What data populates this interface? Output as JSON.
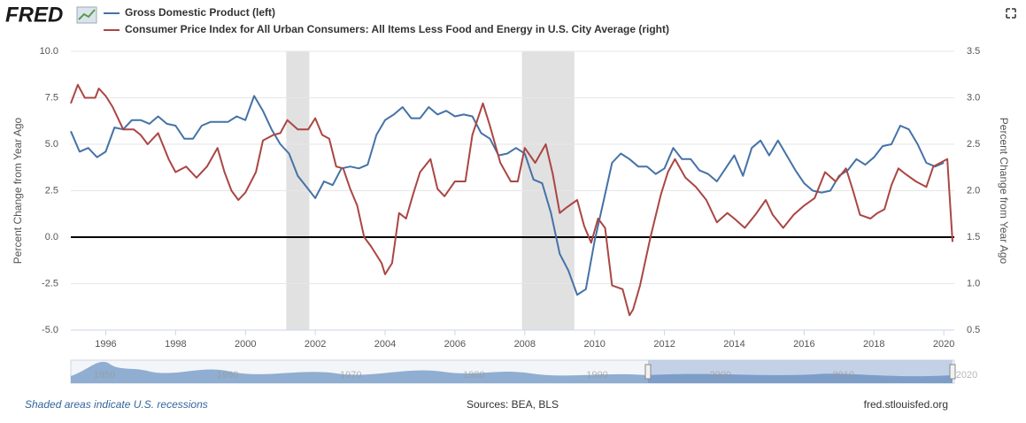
{
  "chart_data": {
    "type": "line",
    "logo": "FRED",
    "xlim": [
      1995,
      2020.3
    ],
    "xticks": [
      1996,
      1998,
      2000,
      2002,
      2004,
      2006,
      2008,
      2010,
      2012,
      2014,
      2016,
      2018,
      2020
    ],
    "ylim": [
      -5,
      10
    ],
    "yticks": [
      {
        "value": 10,
        "label": "10.0"
      },
      {
        "value": 7.5,
        "label": "7.5"
      },
      {
        "value": 5,
        "label": "5.0"
      },
      {
        "value": 2.5,
        "label": "2.5"
      },
      {
        "value": 0,
        "label": "0.0"
      },
      {
        "value": -2.5,
        "label": "-2.5"
      },
      {
        "value": -5,
        "label": "-5.0"
      }
    ],
    "y2lim": [
      0.5,
      3.5
    ],
    "y2ticks": [
      {
        "value": 3.5,
        "label": "3.5"
      },
      {
        "value": 3,
        "label": "3.0"
      },
      {
        "value": 2.5,
        "label": "2.5"
      },
      {
        "value": 2,
        "label": "2.0"
      },
      {
        "value": 1.5,
        "label": "1.5"
      },
      {
        "value": 1,
        "label": "1.0"
      },
      {
        "value": 0.5,
        "label": "0.5"
      }
    ],
    "ylabel": "Percent Change from Year Ago",
    "y2label": "Percent Change from Year Ago",
    "grid": true,
    "baseline": 0,
    "recession_color": "#e1e1e1",
    "recessions": [
      [
        2001.17,
        2001.83
      ],
      [
        2007.92,
        2009.42
      ]
    ],
    "series": [
      {
        "name": "Gross Domestic Product (left)",
        "color": "#4572a7",
        "axis": "y",
        "x": [
          1995,
          1995.25,
          1995.5,
          1995.75,
          1996,
          1996.25,
          1996.5,
          1996.75,
          1997,
          1997.25,
          1997.5,
          1997.75,
          1998,
          1998.25,
          1998.5,
          1998.75,
          1999,
          1999.25,
          1999.5,
          1999.75,
          2000,
          2000.25,
          2000.5,
          2000.75,
          2001,
          2001.25,
          2001.5,
          2001.75,
          2002,
          2002.25,
          2002.5,
          2002.75,
          2003,
          2003.25,
          2003.5,
          2003.75,
          2004,
          2004.25,
          2004.5,
          2004.75,
          2005,
          2005.25,
          2005.5,
          2005.75,
          2006,
          2006.25,
          2006.5,
          2006.75,
          2007,
          2007.25,
          2007.5,
          2007.75,
          2008,
          2008.25,
          2008.5,
          2008.75,
          2009,
          2009.25,
          2009.5,
          2009.75,
          2010,
          2010.25,
          2010.5,
          2010.75,
          2011,
          2011.25,
          2011.5,
          2011.75,
          2012,
          2012.25,
          2012.5,
          2012.75,
          2013,
          2013.25,
          2013.5,
          2013.75,
          2014,
          2014.25,
          2014.5,
          2014.75,
          2015,
          2015.25,
          2015.5,
          2015.75,
          2016,
          2016.25,
          2016.5,
          2016.75,
          2017,
          2017.25,
          2017.5,
          2017.75,
          2018,
          2018.25,
          2018.5,
          2018.75,
          2019,
          2019.25,
          2019.5,
          2019.75,
          2020
        ],
        "values": [
          5.7,
          4.6,
          4.8,
          4.3,
          4.6,
          5.9,
          5.8,
          6.3,
          6.3,
          6.1,
          6.5,
          6.1,
          6.0,
          5.3,
          5.3,
          6.0,
          6.2,
          6.2,
          6.2,
          6.5,
          6.3,
          7.6,
          6.8,
          5.8,
          5.0,
          4.5,
          3.3,
          2.7,
          2.1,
          3.0,
          2.8,
          3.7,
          3.8,
          3.7,
          3.9,
          5.5,
          6.3,
          6.6,
          7.0,
          6.4,
          6.4,
          7.0,
          6.6,
          6.8,
          6.5,
          6.6,
          6.5,
          5.6,
          5.3,
          4.4,
          4.5,
          4.8,
          4.5,
          3.1,
          2.9,
          1.3,
          -0.9,
          -1.8,
          -3.1,
          -2.8,
          -0.2,
          1.9,
          4.0,
          4.5,
          4.2,
          3.8,
          3.8,
          3.4,
          3.7,
          4.8,
          4.2,
          4.2,
          3.6,
          3.4,
          3.0,
          3.7,
          4.4,
          3.3,
          4.8,
          5.2,
          4.4,
          5.2,
          4.4,
          3.6,
          2.9,
          2.5,
          2.4,
          2.5,
          3.3,
          3.6,
          4.2,
          3.9,
          4.3,
          4.9,
          5.0,
          6.0,
          5.8,
          5.0,
          4.0,
          3.8,
          4.0
        ]
      },
      {
        "name": "Consumer Price Index for All Urban Consumers: All Items Less Food and Energy in U.S. City Average (right)",
        "color": "#aa4643",
        "axis": "y2",
        "x": [
          1995,
          1995.2,
          1995.4,
          1995.7,
          1995.8,
          1996,
          1996.2,
          1996.5,
          1996.8,
          1997,
          1997.2,
          1997.5,
          1997.8,
          1998,
          1998.3,
          1998.6,
          1998.9,
          1999.2,
          1999.4,
          1999.6,
          1999.8,
          2000,
          2000.3,
          2000.5,
          2000.8,
          2001,
          2001.2,
          2001.5,
          2001.8,
          2002,
          2002.2,
          2002.4,
          2002.6,
          2002.8,
          2003,
          2003.2,
          2003.4,
          2003.6,
          2003.9,
          2004,
          2004.2,
          2004.4,
          2004.6,
          2004.8,
          2005,
          2005.3,
          2005.5,
          2005.7,
          2006,
          2006.3,
          2006.5,
          2006.8,
          2007,
          2007.3,
          2007.6,
          2007.8,
          2008,
          2008.3,
          2008.6,
          2008.8,
          2009,
          2009.2,
          2009.5,
          2009.7,
          2009.9,
          2010.1,
          2010.3,
          2010.5,
          2010.8,
          2011,
          2011.1,
          2011.3,
          2011.6,
          2011.9,
          2012.1,
          2012.3,
          2012.6,
          2012.9,
          2013.2,
          2013.5,
          2013.8,
          2014,
          2014.3,
          2014.6,
          2014.9,
          2015.1,
          2015.4,
          2015.7,
          2016,
          2016.3,
          2016.6,
          2016.9,
          2017.2,
          2017.4,
          2017.6,
          2017.9,
          2018.1,
          2018.3,
          2018.5,
          2018.7,
          2018.9,
          2019.2,
          2019.5,
          2019.7,
          2019.9,
          2020.1,
          2020.25
        ],
        "values": [
          2.94,
          3.14,
          3.0,
          3.0,
          3.1,
          3.02,
          2.9,
          2.66,
          2.66,
          2.6,
          2.5,
          2.62,
          2.34,
          2.2,
          2.26,
          2.14,
          2.26,
          2.46,
          2.2,
          2.0,
          1.9,
          1.98,
          2.2,
          2.54,
          2.6,
          2.62,
          2.76,
          2.66,
          2.66,
          2.78,
          2.6,
          2.56,
          2.26,
          2.24,
          2.02,
          1.84,
          1.5,
          1.4,
          1.22,
          1.1,
          1.22,
          1.76,
          1.7,
          1.96,
          2.2,
          2.34,
          2.02,
          1.94,
          2.1,
          2.1,
          2.6,
          2.94,
          2.7,
          2.3,
          2.1,
          2.1,
          2.46,
          2.3,
          2.5,
          2.18,
          1.76,
          1.82,
          1.9,
          1.62,
          1.44,
          1.7,
          1.6,
          0.98,
          0.94,
          0.66,
          0.72,
          0.98,
          1.5,
          1.96,
          2.2,
          2.34,
          2.14,
          2.04,
          1.9,
          1.66,
          1.76,
          1.7,
          1.6,
          1.74,
          1.9,
          1.74,
          1.6,
          1.74,
          1.84,
          1.92,
          2.2,
          2.1,
          2.24,
          2.0,
          1.74,
          1.7,
          1.76,
          1.8,
          2.06,
          2.24,
          2.18,
          2.1,
          2.04,
          2.26,
          2.3,
          2.34,
          1.45
        ]
      }
    ],
    "navigator_labels": [
      "1950",
      "1960",
      "1970",
      "1980",
      "1990",
      "2000",
      "2010",
      "2020"
    ],
    "footer_left": "Shaded areas indicate U.S. recessions",
    "footer_center": "Sources: BEA, BLS",
    "footer_right": "fred.stlouisfed.org"
  }
}
